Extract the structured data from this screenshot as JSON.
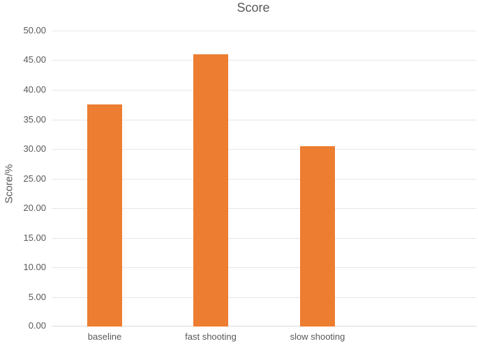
{
  "chart_data": {
    "type": "bar",
    "title": "Score",
    "xlabel": "",
    "ylabel": "Score/%",
    "categories": [
      "baseline",
      "fast shooting",
      "slow shooting"
    ],
    "values": [
      37.5,
      46.0,
      30.5
    ],
    "ylim": [
      0,
      50
    ],
    "ytick_step": 5,
    "ytick_labels": [
      "0.00",
      "5.00",
      "10.00",
      "15.00",
      "20.00",
      "25.00",
      "30.00",
      "35.00",
      "40.00",
      "45.00",
      "50.00"
    ],
    "grid": true,
    "legend": "none",
    "colors": {
      "bar": "#ED7D31",
      "text": "#595959",
      "gridline": "#E6E6E6",
      "axis_line": "#D9D9D9",
      "background": "#FFFFFF"
    }
  }
}
